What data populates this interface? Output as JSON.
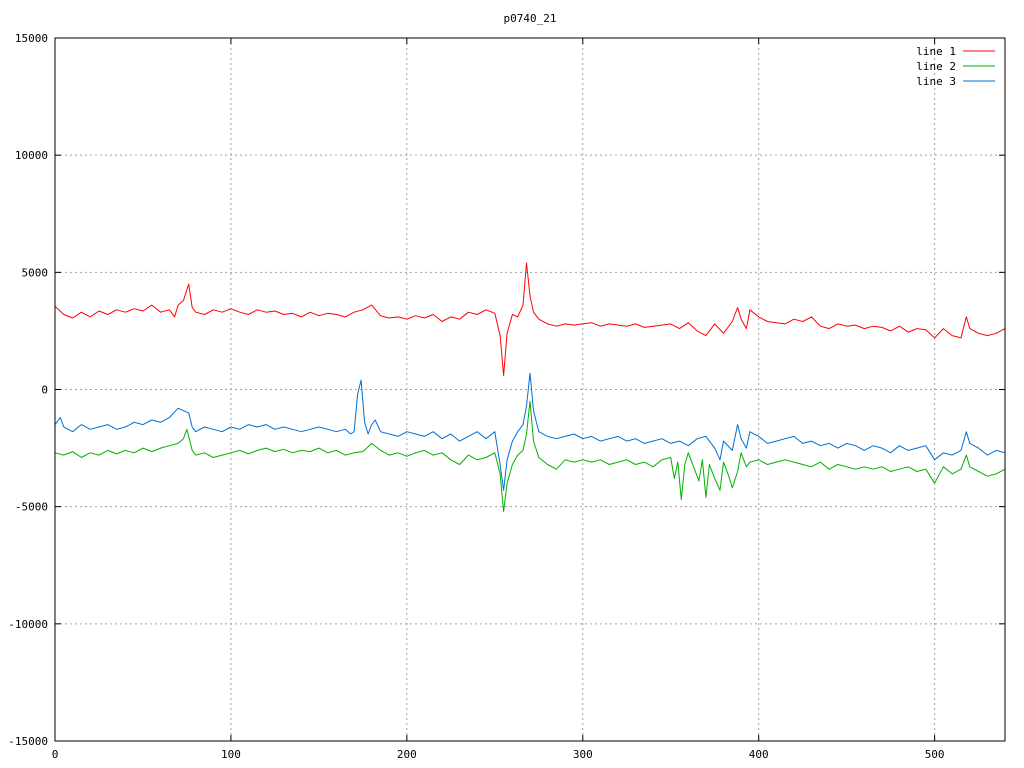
{
  "chart_data": {
    "type": "line",
    "title": "p0740_21",
    "xlim": [
      0,
      540
    ],
    "ylim": [
      -15000,
      15000
    ],
    "x_ticks": [
      0,
      100,
      200,
      300,
      400,
      500
    ],
    "y_ticks": [
      -15000,
      -10000,
      -5000,
      0,
      5000,
      10000,
      15000
    ],
    "x_tick_labels": [
      "0",
      "100",
      "200",
      "300",
      "400",
      "500"
    ],
    "y_tick_labels": [
      "-15000",
      "-10000",
      "-5000",
      "0",
      "5000",
      "10000",
      "15000"
    ],
    "grid": true,
    "legend_position": "top-right",
    "series": [
      {
        "name": "line 1",
        "color": "#ff0000",
        "x": [
          0,
          5,
          10,
          15,
          20,
          25,
          30,
          35,
          40,
          45,
          50,
          55,
          60,
          65,
          68,
          70,
          73,
          76,
          78,
          80,
          85,
          90,
          95,
          100,
          105,
          110,
          115,
          120,
          125,
          130,
          135,
          140,
          145,
          150,
          155,
          160,
          165,
          170,
          175,
          180,
          185,
          190,
          195,
          200,
          205,
          210,
          215,
          220,
          225,
          230,
          235,
          240,
          245,
          250,
          253,
          255,
          257,
          260,
          263,
          266,
          268,
          270,
          272,
          275,
          280,
          285,
          290,
          295,
          300,
          305,
          310,
          315,
          320,
          325,
          330,
          335,
          340,
          345,
          350,
          355,
          360,
          365,
          370,
          375,
          380,
          385,
          388,
          390,
          393,
          395,
          400,
          405,
          410,
          415,
          420,
          425,
          430,
          435,
          440,
          445,
          450,
          455,
          460,
          465,
          470,
          475,
          480,
          485,
          490,
          495,
          500,
          505,
          510,
          515,
          518,
          520,
          525,
          530,
          535,
          540
        ],
        "y": [
          3550,
          3200,
          3050,
          3300,
          3100,
          3350,
          3200,
          3400,
          3300,
          3450,
          3350,
          3600,
          3300,
          3400,
          3100,
          3600,
          3800,
          4500,
          3500,
          3300,
          3200,
          3400,
          3300,
          3450,
          3300,
          3200,
          3400,
          3300,
          3350,
          3200,
          3250,
          3100,
          3300,
          3150,
          3250,
          3200,
          3100,
          3300,
          3400,
          3600,
          3150,
          3050,
          3100,
          3000,
          3150,
          3050,
          3200,
          2900,
          3100,
          3000,
          3300,
          3200,
          3400,
          3250,
          2300,
          600,
          2400,
          3200,
          3100,
          3600,
          5400,
          4000,
          3300,
          3000,
          2800,
          2700,
          2800,
          2750,
          2800,
          2850,
          2700,
          2800,
          2750,
          2700,
          2800,
          2650,
          2700,
          2750,
          2800,
          2600,
          2850,
          2500,
          2300,
          2800,
          2400,
          2900,
          3500,
          3000,
          2600,
          3400,
          3100,
          2900,
          2850,
          2800,
          3000,
          2900,
          3100,
          2700,
          2600,
          2800,
          2700,
          2750,
          2600,
          2700,
          2650,
          2500,
          2700,
          2450,
          2600,
          2550,
          2200,
          2600,
          2300,
          2200,
          3100,
          2600,
          2400,
          2300,
          2400,
          2600
        ]
      },
      {
        "name": "line 2",
        "color": "#00b000",
        "x": [
          0,
          5,
          10,
          15,
          20,
          25,
          30,
          35,
          40,
          45,
          50,
          55,
          60,
          65,
          70,
          73,
          75,
          78,
          80,
          85,
          90,
          95,
          100,
          105,
          110,
          115,
          120,
          125,
          130,
          135,
          140,
          145,
          150,
          155,
          160,
          165,
          170,
          175,
          180,
          185,
          190,
          195,
          200,
          205,
          210,
          215,
          220,
          225,
          230,
          235,
          240,
          245,
          250,
          253,
          255,
          257,
          260,
          263,
          266,
          268,
          270,
          272,
          275,
          280,
          285,
          290,
          295,
          300,
          305,
          310,
          315,
          320,
          325,
          330,
          335,
          340,
          345,
          350,
          352,
          354,
          356,
          358,
          360,
          363,
          366,
          368,
          370,
          372,
          375,
          378,
          380,
          383,
          385,
          388,
          390,
          393,
          395,
          400,
          405,
          410,
          415,
          420,
          425,
          430,
          435,
          440,
          445,
          450,
          455,
          460,
          465,
          470,
          475,
          480,
          485,
          490,
          495,
          500,
          505,
          510,
          515,
          518,
          520,
          525,
          530,
          535,
          540
        ],
        "y": [
          -2700,
          -2800,
          -2650,
          -2900,
          -2700,
          -2800,
          -2600,
          -2750,
          -2600,
          -2700,
          -2500,
          -2650,
          -2500,
          -2400,
          -2300,
          -2100,
          -1700,
          -2600,
          -2800,
          -2700,
          -2900,
          -2800,
          -2700,
          -2600,
          -2750,
          -2600,
          -2500,
          -2650,
          -2550,
          -2700,
          -2600,
          -2650,
          -2500,
          -2700,
          -2600,
          -2800,
          -2700,
          -2650,
          -2300,
          -2600,
          -2800,
          -2700,
          -2850,
          -2700,
          -2600,
          -2800,
          -2700,
          -3000,
          -3200,
          -2800,
          -3000,
          -2900,
          -2700,
          -3600,
          -5200,
          -4000,
          -3200,
          -2800,
          -2600,
          -1900,
          -500,
          -2200,
          -2900,
          -3200,
          -3400,
          -3000,
          -3100,
          -3000,
          -3100,
          -3000,
          -3200,
          -3100,
          -3000,
          -3200,
          -3100,
          -3300,
          -3000,
          -2900,
          -3800,
          -3100,
          -4700,
          -3200,
          -2700,
          -3300,
          -3900,
          -3000,
          -4600,
          -3200,
          -3800,
          -4300,
          -3100,
          -3700,
          -4200,
          -3500,
          -2700,
          -3300,
          -3100,
          -3000,
          -3200,
          -3100,
          -3000,
          -3100,
          -3200,
          -3300,
          -3100,
          -3400,
          -3200,
          -3300,
          -3400,
          -3300,
          -3400,
          -3300,
          -3500,
          -3400,
          -3300,
          -3500,
          -3400,
          -4000,
          -3300,
          -3600,
          -3400,
          -2800,
          -3300,
          -3500,
          -3700,
          -3600,
          -3400
        ]
      },
      {
        "name": "line 3",
        "color": "#0070d0",
        "x": [
          0,
          3,
          5,
          10,
          15,
          20,
          25,
          30,
          35,
          40,
          45,
          50,
          55,
          60,
          65,
          70,
          73,
          76,
          78,
          80,
          85,
          90,
          95,
          100,
          105,
          110,
          115,
          120,
          125,
          130,
          135,
          140,
          145,
          150,
          155,
          160,
          165,
          168,
          170,
          172,
          174,
          176,
          178,
          180,
          182,
          185,
          190,
          195,
          200,
          205,
          210,
          215,
          220,
          225,
          230,
          235,
          240,
          245,
          250,
          253,
          255,
          257,
          260,
          263,
          266,
          268,
          270,
          272,
          275,
          280,
          285,
          290,
          295,
          300,
          305,
          310,
          315,
          320,
          325,
          330,
          335,
          340,
          345,
          350,
          355,
          360,
          365,
          370,
          375,
          378,
          380,
          385,
          388,
          390,
          393,
          395,
          400,
          405,
          410,
          415,
          420,
          425,
          430,
          435,
          440,
          445,
          450,
          455,
          460,
          465,
          470,
          475,
          480,
          485,
          490,
          495,
          500,
          505,
          510,
          515,
          518,
          520,
          525,
          530,
          535,
          540
        ],
        "y": [
          -1500,
          -1200,
          -1600,
          -1800,
          -1500,
          -1700,
          -1600,
          -1500,
          -1700,
          -1600,
          -1400,
          -1500,
          -1300,
          -1400,
          -1200,
          -800,
          -900,
          -1000,
          -1600,
          -1800,
          -1600,
          -1700,
          -1800,
          -1600,
          -1700,
          -1500,
          -1600,
          -1500,
          -1700,
          -1600,
          -1700,
          -1800,
          -1700,
          -1600,
          -1700,
          -1800,
          -1700,
          -1900,
          -1800,
          -200,
          400,
          -1400,
          -1900,
          -1500,
          -1300,
          -1800,
          -1900,
          -2000,
          -1800,
          -1900,
          -2000,
          -1800,
          -2100,
          -1900,
          -2200,
          -2000,
          -1800,
          -2100,
          -1800,
          -3200,
          -4300,
          -3000,
          -2200,
          -1800,
          -1500,
          -700,
          700,
          -900,
          -1800,
          -2000,
          -2100,
          -2000,
          -1900,
          -2100,
          -2000,
          -2200,
          -2100,
          -2000,
          -2200,
          -2100,
          -2300,
          -2200,
          -2100,
          -2300,
          -2200,
          -2400,
          -2100,
          -2000,
          -2500,
          -3000,
          -2200,
          -2600,
          -1500,
          -2100,
          -2500,
          -1800,
          -2000,
          -2300,
          -2200,
          -2100,
          -2000,
          -2300,
          -2200,
          -2400,
          -2300,
          -2500,
          -2300,
          -2400,
          -2600,
          -2400,
          -2500,
          -2700,
          -2400,
          -2600,
          -2500,
          -2400,
          -3000,
          -2700,
          -2800,
          -2600,
          -1800,
          -2300,
          -2500,
          -2800,
          -2600,
          -2700
        ]
      }
    ]
  }
}
